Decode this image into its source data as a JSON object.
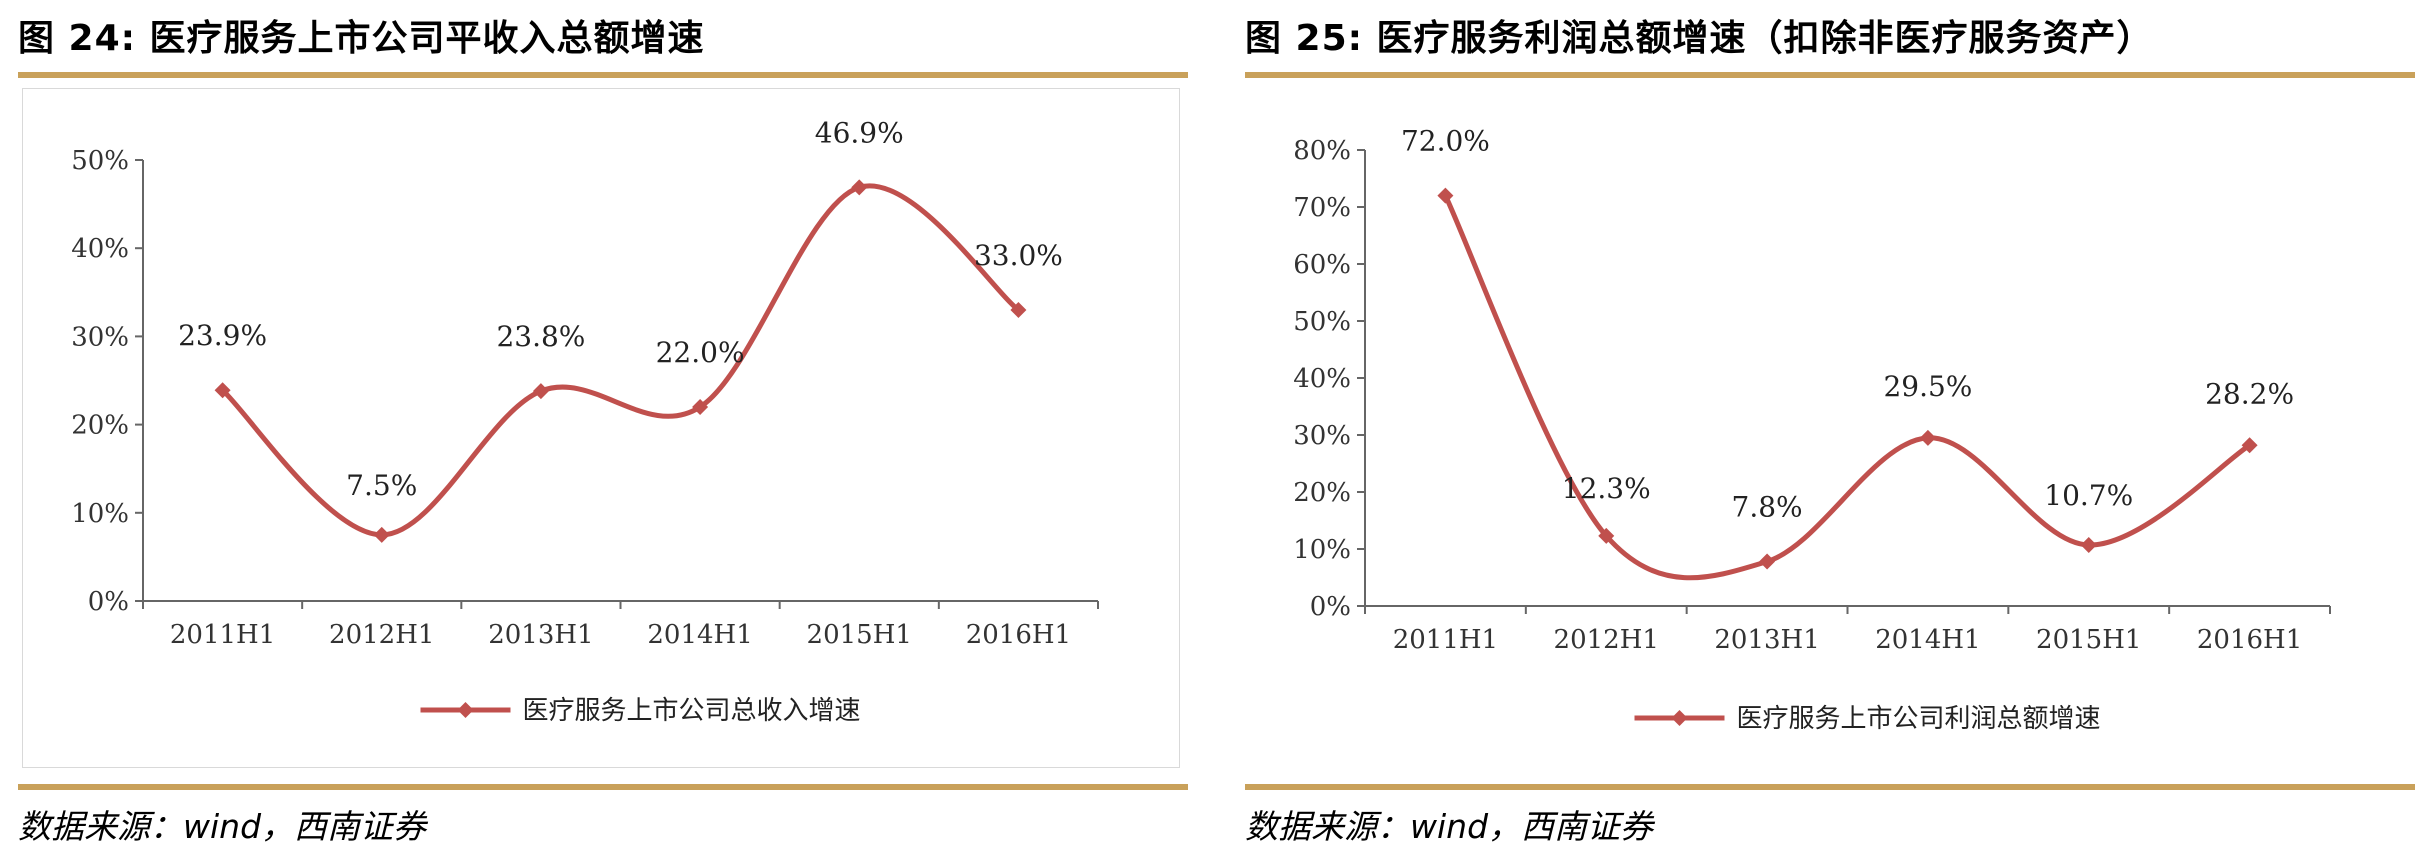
{
  "figures": [
    {
      "title": "图 24:  医疗服务上市公司平收入总额增速",
      "source": "数据来源：wind，西南证券"
    },
    {
      "title": "图 25:  医疗服务利润总额增速（扣除非医疗服务资产）",
      "source": "数据来源：wind，西南证券"
    }
  ],
  "chart_data": [
    {
      "type": "line",
      "categories": [
        "2011H1",
        "2012H1",
        "2013H1",
        "2014H1",
        "2015H1",
        "2016H1"
      ],
      "series": [
        {
          "name": "医疗服务上市公司总收入增速",
          "values": [
            23.9,
            7.5,
            23.8,
            22.0,
            46.9,
            33.0
          ],
          "labels": [
            "23.9%",
            "7.5%",
            "23.8%",
            "22.0%",
            "46.9%",
            "33.0%"
          ],
          "color": "#c0504d"
        }
      ],
      "yticks": [
        "0%",
        "10%",
        "20%",
        "30%",
        "40%",
        "50%"
      ],
      "ylim": [
        0,
        50
      ],
      "grid": false,
      "legend": "bottom",
      "smooth": true
    },
    {
      "type": "line",
      "categories": [
        "2011H1",
        "2012H1",
        "2013H1",
        "2014H1",
        "2015H1",
        "2016H1"
      ],
      "series": [
        {
          "name": "医疗服务上市公司利润总额增速",
          "values": [
            72.0,
            12.3,
            7.8,
            29.5,
            10.7,
            28.2
          ],
          "labels": [
            "72.0%",
            "12.3%",
            "7.8%",
            "29.5%",
            "10.7%",
            "28.2%"
          ],
          "color": "#c0504d"
        }
      ],
      "yticks": [
        "0%",
        "10%",
        "20%",
        "30%",
        "40%",
        "50%",
        "60%",
        "70%",
        "80%"
      ],
      "ylim": [
        0,
        80
      ],
      "grid": false,
      "legend": "bottom",
      "smooth": true
    }
  ]
}
